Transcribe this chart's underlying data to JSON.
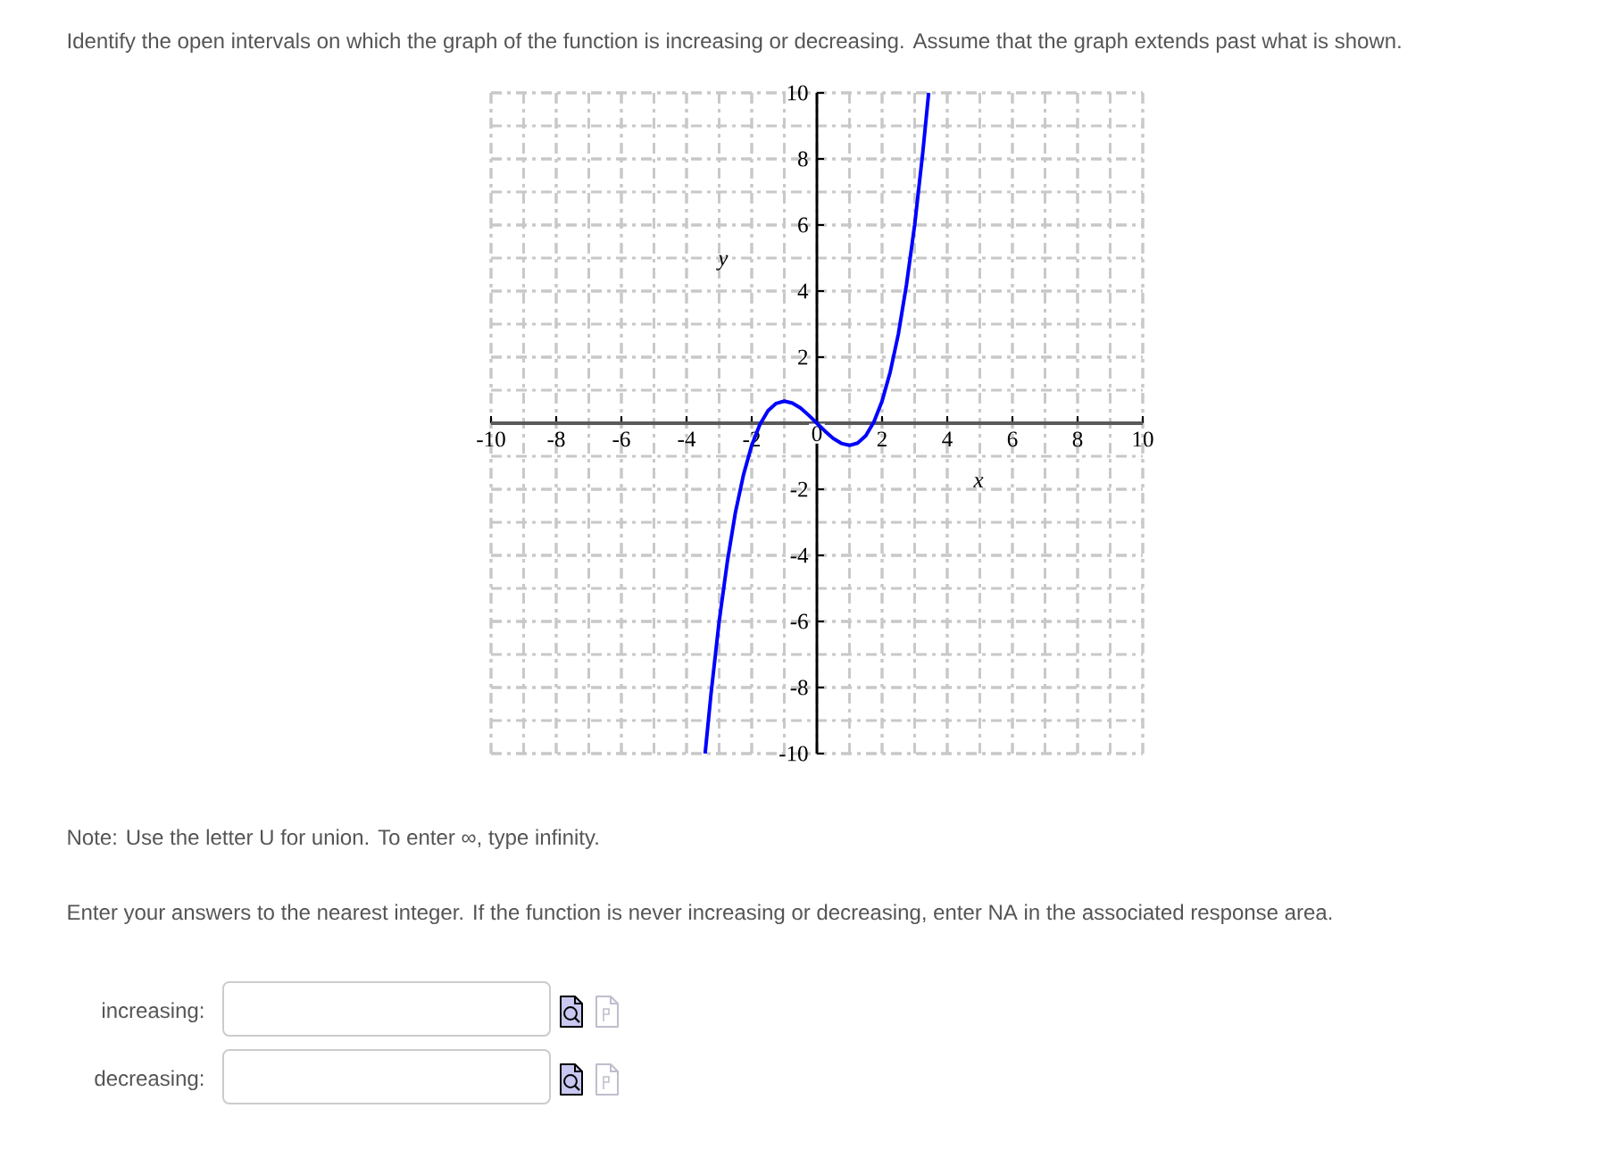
{
  "chart_data": {
    "type": "line",
    "title": "Identify the open intervals on which the graph of the function is increasing or decreasing. Assume that the graph extends past what is shown.",
    "xlabel": "x",
    "ylabel": "y",
    "annotations": [
      "Note: Use the letter U for union. To enter ∞, type infinity.",
      "Enter your answers to the nearest integer. If the function is never increasing or decreasing, enter NA in the associated response area.",
      "increasing:",
      "decreasing:"
    ],
    "x": [
      -3.43,
      -3.25,
      -3,
      -2.75,
      -2.5,
      -2.25,
      -2,
      -1.75,
      -1.5,
      -1.25,
      -1,
      -0.75,
      -0.5,
      -0.25,
      0,
      0.25,
      0.5,
      0.75,
      1,
      1.25,
      1.5,
      1.75,
      2,
      2.25,
      2.5,
      2.75,
      3,
      3.25,
      3.43
    ],
    "values": [
      -10,
      -8.2,
      -6,
      -4.2,
      -2.7,
      -1.55,
      -0.67,
      -0.04,
      0.38,
      0.6,
      0.67,
      0.61,
      0.46,
      0.24,
      0,
      -0.24,
      -0.46,
      -0.61,
      -0.67,
      -0.6,
      -0.38,
      0.04,
      0.67,
      1.55,
      2.7,
      4.2,
      6,
      8.2,
      10
    ],
    "color": "#0000ff",
    "xlim": [
      -10,
      10
    ],
    "ylim": [
      -10,
      10
    ],
    "xticks": [
      -10,
      -8,
      -6,
      -4,
      -2,
      0,
      2,
      4,
      6,
      8,
      10
    ],
    "yticks": [
      -10,
      -8,
      -6,
      -4,
      -2,
      2,
      4,
      6,
      8,
      10
    ],
    "grid": true
  }
}
